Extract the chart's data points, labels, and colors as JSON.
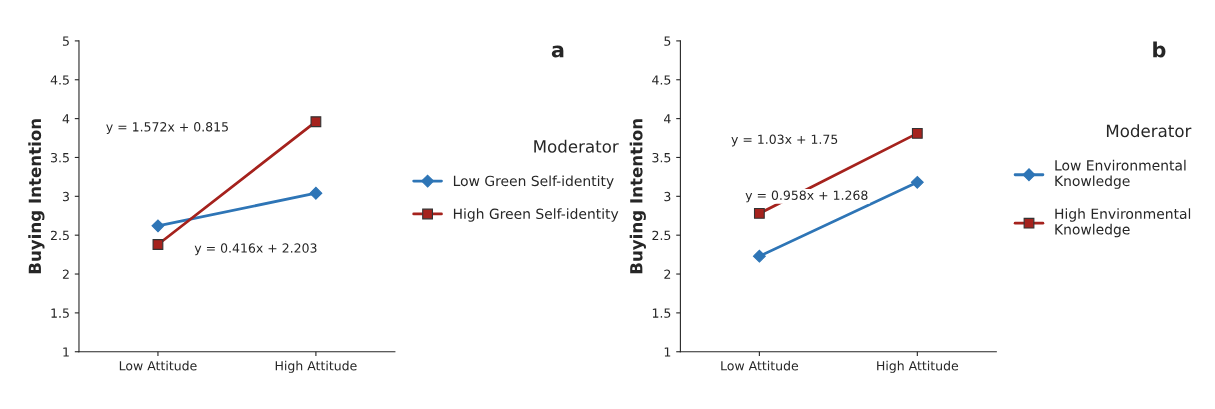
{
  "chart_data": [
    {
      "type": "line",
      "ylabel": "Buying Intention",
      "categories": [
        "Low Attitude",
        "High Attitude"
      ],
      "ylim": [
        1,
        5
      ],
      "yticks": [
        1,
        1.5,
        2,
        2.5,
        3,
        3.5,
        4,
        4.5,
        5
      ],
      "grid": false,
      "legend": "right",
      "legend_title": "Moderator",
      "series": [
        {
          "name": "Low Green Self-identity",
          "color": "#2e75b6",
          "marker": "diamond",
          "values": [
            2.62,
            3.04
          ]
        },
        {
          "name": "High Green Self-identity",
          "color": "#a5221d",
          "marker": "square",
          "values": [
            2.38,
            3.96
          ]
        }
      ],
      "annotations": [
        "a",
        "y = 1.572x + 0.815",
        "y = 0.416x + 2.203"
      ]
    },
    {
      "type": "line",
      "ylabel": "Buying Intention",
      "categories": [
        "Low Attitude",
        "High Attitude"
      ],
      "ylim": [
        1,
        5
      ],
      "yticks": [
        1,
        1.5,
        2,
        2.5,
        3,
        3.5,
        4,
        4.5,
        5
      ],
      "grid": false,
      "legend": "right",
      "legend_title": "Moderator",
      "series": [
        {
          "name": "Low Environmental\nKnowledge",
          "color": "#2e75b6",
          "marker": "diamond",
          "values": [
            2.23,
            3.18
          ]
        },
        {
          "name": "High Environmental\nKnowledge",
          "color": "#a5221d",
          "marker": "square",
          "values": [
            2.78,
            3.81
          ]
        }
      ],
      "annotations": [
        "b",
        "y = 1.03x + 1.75",
        "y = 0.958x + 1.268"
      ]
    }
  ]
}
